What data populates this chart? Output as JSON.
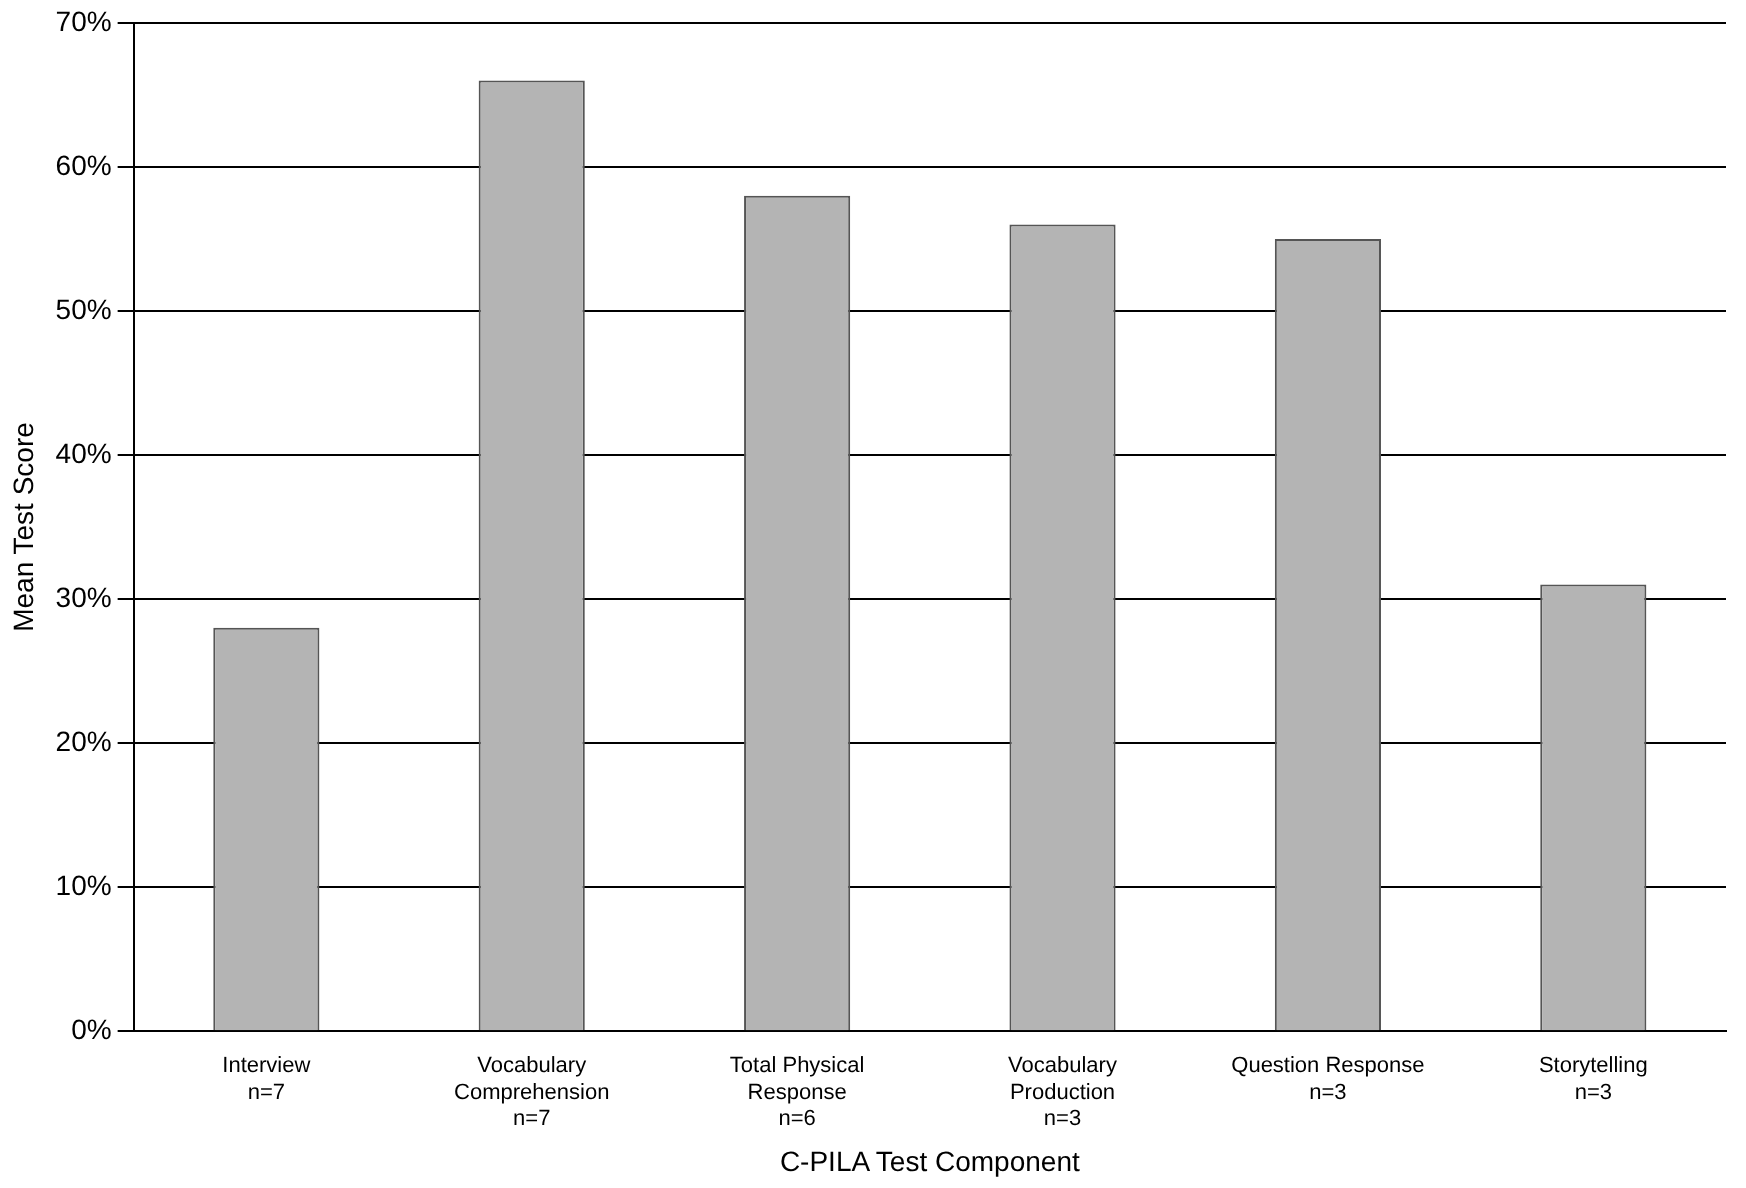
{
  "chart_data": {
    "type": "bar",
    "xlabel": "C-PILA Test Component",
    "ylabel": "Mean Test Score",
    "categories": [
      "Interview\nn=7",
      "Vocabulary\nComprehension\nn=7",
      "Total Physical\nResponse\nn=6",
      "Vocabulary\nProduction\nn=3",
      "Question Response\nn=3",
      "Storytelling\nn=3"
    ],
    "values": [
      28,
      66,
      58,
      56,
      55,
      31
    ],
    "color": "#b4b4b4",
    "ylim": [
      0,
      70
    ],
    "yticks": [
      {
        "value": 0,
        "label": "0%"
      },
      {
        "value": 10,
        "label": "10%"
      },
      {
        "value": 20,
        "label": "20%"
      },
      {
        "value": 30,
        "label": "30%"
      },
      {
        "value": 40,
        "label": "40%"
      },
      {
        "value": 50,
        "label": "50%"
      },
      {
        "value": 60,
        "label": "60%"
      },
      {
        "value": 70,
        "label": "70%"
      }
    ],
    "grid": "y"
  }
}
